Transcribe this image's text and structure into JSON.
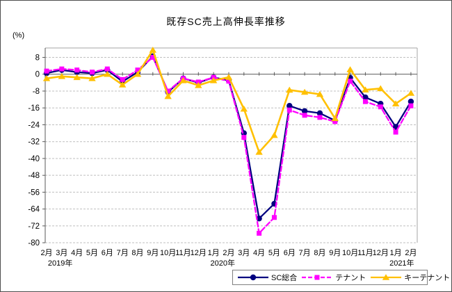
{
  "chart_data": {
    "type": "line",
    "title": "既存SC売上高伸長率推移",
    "ylabel": "(%)",
    "categories": [
      "2月",
      "3月",
      "4月",
      "5月",
      "6月",
      "7月",
      "8月",
      "9月",
      "10月",
      "11月",
      "12月",
      "1月",
      "2月",
      "3月",
      "4月",
      "5月",
      "6月",
      "7月",
      "8月",
      "9月",
      "10月",
      "11月",
      "12月",
      "1月",
      "2月"
    ],
    "year_labels": [
      {
        "label": "2019年",
        "month_index": 0.9
      },
      {
        "label": "2020年",
        "month_index": 11.6
      },
      {
        "label": "2021年",
        "month_index": 23.4
      }
    ],
    "ylim": [
      -80,
      8
    ],
    "ytick_step": 8,
    "grid": "dashed-horizontal",
    "legend_position": "bottom",
    "axis_color": "#595959",
    "gridline_color": "#bfbfbf",
    "series": [
      {
        "name": "SC総合",
        "color": "#000080",
        "line": "solid",
        "marker": "circle",
        "values": [
          0.5,
          2,
          1,
          0.5,
          2,
          -3.5,
          1,
          8.5,
          -8.5,
          -2,
          -4,
          -1.5,
          -3,
          -28,
          -68.5,
          -61.5,
          -15,
          -17.5,
          -18.5,
          -22,
          -1.7,
          -11,
          -14,
          -25,
          -13
        ]
      },
      {
        "name": "テナント",
        "color": "#FF00FF",
        "line": "dashed",
        "marker": "square",
        "values": [
          1.5,
          2.5,
          2,
          1,
          2.5,
          -2.5,
          2,
          8,
          -8,
          -2,
          -3.7,
          -1.5,
          -3.3,
          -30,
          -75.5,
          -68,
          -17,
          -19.5,
          -20.5,
          -22.5,
          -3.3,
          -13,
          -15.5,
          -27.5,
          -15
        ]
      },
      {
        "name": "キーテナント",
        "color": "#FFC000",
        "line": "solid",
        "marker": "triangle",
        "values": [
          -2,
          -1,
          -1.5,
          -2,
          0,
          -5,
          0,
          11.5,
          -10.5,
          -3,
          -5.3,
          -3,
          -1.4,
          -16.5,
          -37,
          -29,
          -7.5,
          -8.5,
          -9.5,
          -21,
          2.2,
          -7.4,
          -6.8,
          -14,
          -9
        ]
      }
    ]
  }
}
